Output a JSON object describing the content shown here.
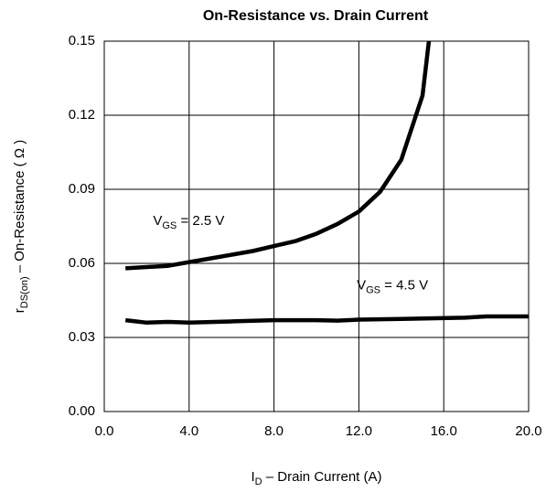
{
  "chart_data": {
    "type": "line",
    "title": "On-Resistance vs. Drain Current",
    "x_label": {
      "main": "I",
      "sub": "D",
      "tail": "  –  Drain Current (A)"
    },
    "y_label": {
      "main": "r",
      "sub": "DS(on)",
      "tail": "  –  On-Resistance ( Ω )"
    },
    "xlim": [
      0,
      20
    ],
    "ylim": [
      0,
      0.15
    ],
    "xticks": [
      {
        "value": 0,
        "label": "0.0"
      },
      {
        "value": 4,
        "label": "4.0"
      },
      {
        "value": 8,
        "label": "8.0"
      },
      {
        "value": 12,
        "label": "12.0"
      },
      {
        "value": 16,
        "label": "16.0"
      },
      {
        "value": 20,
        "label": "20.0"
      }
    ],
    "yticks": [
      {
        "value": 0,
        "label": "0.00"
      },
      {
        "value": 0.03,
        "label": "0.03"
      },
      {
        "value": 0.06,
        "label": "0.06"
      },
      {
        "value": 0.09,
        "label": "0.09"
      },
      {
        "value": 0.12,
        "label": "0.12"
      },
      {
        "value": 0.15,
        "label": "0.15"
      }
    ],
    "grid": true,
    "series": [
      {
        "color": "#000000",
        "x": [
          1,
          2,
          3,
          4,
          5,
          6,
          7,
          8,
          9,
          10,
          11,
          12,
          13,
          14,
          15,
          15.3
        ],
        "values": [
          0.058,
          0.0585,
          0.059,
          0.0605,
          0.062,
          0.0635,
          0.065,
          0.067,
          0.069,
          0.072,
          0.076,
          0.081,
          0.089,
          0.102,
          0.128,
          0.15
        ]
      },
      {
        "color": "#000000",
        "x": [
          1,
          2,
          3,
          4,
          6,
          8,
          10,
          11,
          12,
          14,
          17,
          18,
          20
        ],
        "values": [
          0.037,
          0.036,
          0.0363,
          0.036,
          0.0365,
          0.037,
          0.037,
          0.0368,
          0.0372,
          0.0375,
          0.038,
          0.0385,
          0.0385
        ]
      }
    ],
    "annotations": [
      {
        "main": "V",
        "sub": "GS",
        "tail": " = 2.5 V",
        "x": 2.3,
        "y": 0.077
      },
      {
        "main": "V",
        "sub": "GS",
        "tail": " = 4.5 V",
        "x": 11.9,
        "y": 0.051
      }
    ]
  }
}
